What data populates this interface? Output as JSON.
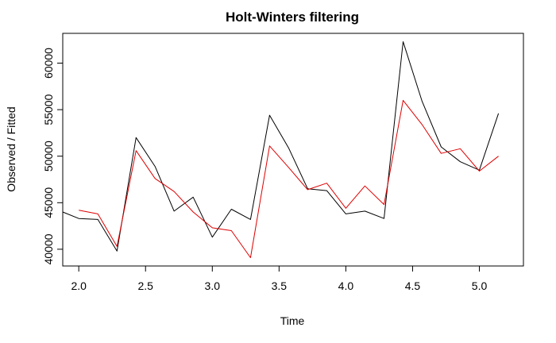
{
  "chart_data": {
    "type": "line",
    "title": "Holt-Winters filtering",
    "xlabel": "Time",
    "ylabel": "Observed / Fitted",
    "xlim": [
      1.88,
      5.33
    ],
    "ylim": [
      38200,
      63200
    ],
    "x_ticks": [
      2.0,
      2.5,
      3.0,
      3.5,
      4.0,
      4.5,
      5.0
    ],
    "x_tick_labels": [
      "2.0",
      "2.5",
      "3.0",
      "3.5",
      "4.0",
      "4.5",
      "5.0"
    ],
    "y_ticks": [
      40000,
      45000,
      50000,
      55000,
      60000
    ],
    "y_tick_labels": [
      "40000",
      "45000",
      "50000",
      "55000",
      "60000"
    ],
    "grid": false,
    "series": [
      {
        "color": "#000000",
        "x": [
          1.875,
          2.0,
          2.143,
          2.286,
          2.429,
          2.571,
          2.714,
          2.857,
          3.0,
          3.143,
          3.286,
          3.429,
          3.571,
          3.714,
          3.857,
          4.0,
          4.143,
          4.286,
          4.429,
          4.571,
          4.714,
          4.857,
          5.0,
          5.143
        ],
        "y": [
          44000,
          43300,
          43200,
          39800,
          52000,
          48900,
          44100,
          45600,
          41300,
          44300,
          43200,
          54400,
          50900,
          46500,
          46300,
          43800,
          44100,
          43300,
          62300,
          55900,
          51000,
          49400,
          48500,
          54600
        ]
      },
      {
        "color": "#dd0000",
        "x": [
          2.0,
          2.143,
          2.286,
          2.429,
          2.571,
          2.714,
          2.857,
          3.0,
          3.143,
          3.286,
          3.429,
          3.571,
          3.714,
          3.857,
          4.0,
          4.143,
          4.286,
          4.429,
          4.571,
          4.714,
          4.857,
          5.0,
          5.143
        ],
        "y": [
          44200,
          43800,
          40300,
          50600,
          47600,
          46200,
          44000,
          42300,
          42000,
          39100,
          51100,
          48800,
          46400,
          47100,
          44400,
          46800,
          44800,
          56000,
          53400,
          50300,
          50800,
          48400,
          50000
        ]
      }
    ]
  }
}
